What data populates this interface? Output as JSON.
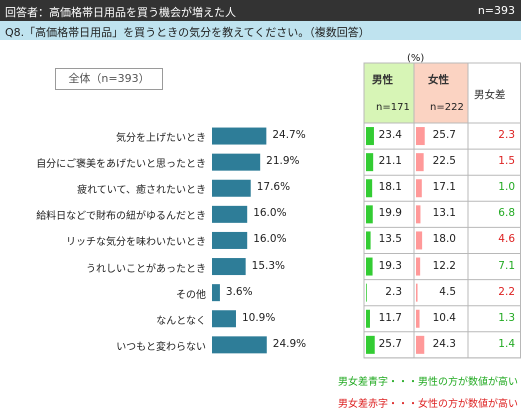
{
  "header": {
    "respondents": "回答者：高価格帯日用品を買う機会が増えた人",
    "n": "n=393"
  },
  "question": "Q8.「高価格帯日用品」を買うときの気分を教えてください。（複数回答）",
  "total_label": "全体（n=393）",
  "unit_label": "(%)",
  "columns": {
    "male": "男性",
    "male_n": "n=171",
    "female": "女性",
    "female_n": "n=222",
    "diff": "男女差"
  },
  "legend": {
    "blue": "男女差青字・・・男性の方が数値が高い",
    "red": "男女差赤字・・・女性の方が数値が高い"
  },
  "colors": {
    "bar": "#2e7d98",
    "male_bar": "#33cc33",
    "female_bar": "#ff9999",
    "male_header": "#d7f5b6",
    "female_header": "#fbd3c2",
    "diff_male": "#22aa22",
    "diff_female": "#dd2222"
  },
  "chart_data": {
    "type": "bar",
    "orientation": "horizontal",
    "categories": [
      "気分を上げたいとき",
      "自分にご褒美をあげたいと思ったとき",
      "疲れていて、癒されたいとき",
      "給料日などで財布の紐がゆるんだとき",
      "リッチな気分を味わいたいとき",
      "うれしいことがあったとき",
      "その他",
      "なんとなく",
      "いつもと変わらない"
    ],
    "series": [
      {
        "name": "全体（n=393）",
        "values": [
          24.7,
          21.9,
          17.6,
          16.0,
          16.0,
          15.3,
          3.6,
          10.9,
          24.9
        ]
      },
      {
        "name": "男性",
        "values": [
          23.4,
          21.1,
          18.1,
          19.9,
          13.5,
          19.3,
          2.3,
          11.7,
          25.7
        ]
      },
      {
        "name": "女性",
        "values": [
          25.7,
          22.5,
          17.1,
          13.1,
          18.0,
          12.2,
          4.5,
          10.4,
          24.3
        ]
      }
    ],
    "total_labels": [
      "24.7%",
      "21.9%",
      "17.6%",
      "16.0%",
      "16.0%",
      "15.3%",
      "3.6%",
      "10.9%",
      "24.9%"
    ],
    "male_labels": [
      "23.4",
      "21.1",
      "18.1",
      "19.9",
      "13.5",
      "19.3",
      "2.3",
      "11.7",
      "25.7"
    ],
    "female_labels": [
      "25.7",
      "22.5",
      "17.1",
      "13.1",
      "18.0",
      "12.2",
      "4.5",
      "10.4",
      "24.3"
    ],
    "diff": [
      "2.3",
      "1.5",
      "1.0",
      "6.8",
      "4.6",
      "7.1",
      "2.2",
      "1.3",
      "1.4"
    ],
    "diff_higher": [
      "female",
      "female",
      "male",
      "male",
      "female",
      "male",
      "female",
      "male",
      "male"
    ]
  }
}
